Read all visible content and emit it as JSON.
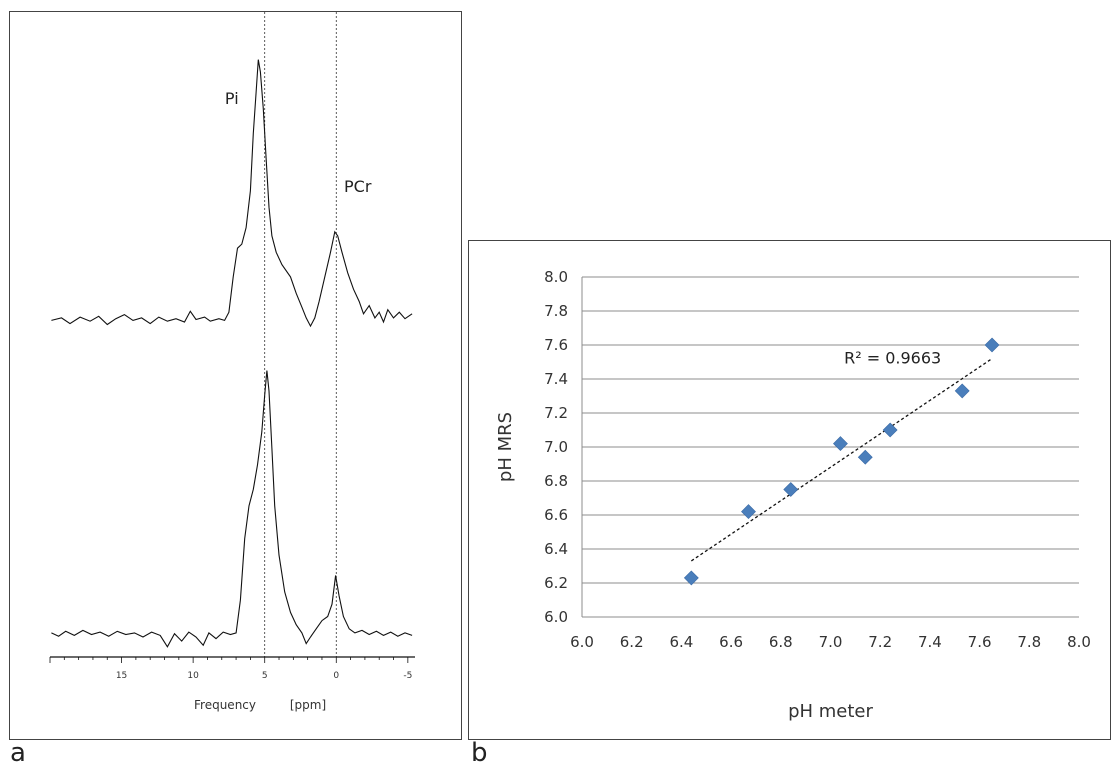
{
  "chart_data": [
    {
      "type": "line",
      "panel": "a",
      "xlabel": "Frequency",
      "xunit": "[ppm]",
      "xlim": [
        20,
        -5.5
      ],
      "x_reversed": true,
      "x_ticks": [
        "15",
        "10",
        "5",
        "0",
        "-5"
      ],
      "x_tick_values": [
        15,
        10,
        5,
        0,
        -5
      ],
      "reference_lines_ppm": [
        5,
        0
      ],
      "peak_labels": [
        {
          "text": "Pi",
          "ppm": 7.3
        },
        {
          "text": "PCr",
          "ppm": -1.5
        }
      ],
      "series": [
        {
          "points": [
            [
              19.9,
              0.02
            ],
            [
              19.2,
              0.05
            ],
            [
              18.6,
              -0.02
            ],
            [
              17.9,
              0.06
            ],
            [
              17.2,
              0.01
            ],
            [
              16.6,
              0.07
            ],
            [
              16.0,
              -0.03
            ],
            [
              15.4,
              0.04
            ],
            [
              14.8,
              0.09
            ],
            [
              14.2,
              0.02
            ],
            [
              13.6,
              0.05
            ],
            [
              13.0,
              -0.02
            ],
            [
              12.4,
              0.06
            ],
            [
              11.8,
              0.01
            ],
            [
              11.2,
              0.04
            ],
            [
              10.6,
              0.0
            ],
            [
              10.2,
              0.13
            ],
            [
              9.8,
              0.03
            ],
            [
              9.2,
              0.06
            ],
            [
              8.8,
              0.01
            ],
            [
              8.2,
              0.04
            ],
            [
              7.8,
              0.02
            ],
            [
              7.5,
              0.12
            ],
            [
              7.2,
              0.55
            ],
            [
              6.9,
              0.9
            ],
            [
              6.6,
              0.95
            ],
            [
              6.3,
              1.15
            ],
            [
              6.0,
              1.6
            ],
            [
              5.8,
              2.3
            ],
            [
              5.6,
              2.8
            ],
            [
              5.45,
              3.2
            ],
            [
              5.3,
              3.05
            ],
            [
              5.1,
              2.6
            ],
            [
              4.9,
              2.0
            ],
            [
              4.7,
              1.4
            ],
            [
              4.5,
              1.05
            ],
            [
              4.2,
              0.85
            ],
            [
              3.8,
              0.7
            ],
            [
              3.2,
              0.55
            ],
            [
              2.8,
              0.35
            ],
            [
              2.4,
              0.18
            ],
            [
              2.1,
              0.05
            ],
            [
              1.8,
              -0.05
            ],
            [
              1.5,
              0.05
            ],
            [
              1.2,
              0.25
            ],
            [
              0.8,
              0.55
            ],
            [
              0.4,
              0.85
            ],
            [
              0.1,
              1.1
            ],
            [
              -0.1,
              1.05
            ],
            [
              -0.4,
              0.85
            ],
            [
              -0.8,
              0.6
            ],
            [
              -1.2,
              0.4
            ],
            [
              -1.6,
              0.25
            ],
            [
              -1.9,
              0.1
            ],
            [
              -2.3,
              0.2
            ],
            [
              -2.7,
              0.05
            ],
            [
              -3.0,
              0.12
            ],
            [
              -3.3,
              0.0
            ],
            [
              -3.6,
              0.15
            ],
            [
              -4.0,
              0.05
            ],
            [
              -4.4,
              0.12
            ],
            [
              -4.8,
              0.04
            ],
            [
              -5.3,
              0.1
            ]
          ]
        },
        {
          "points": [
            [
              19.9,
              0.05
            ],
            [
              19.4,
              0.01
            ],
            [
              18.9,
              0.07
            ],
            [
              18.3,
              0.02
            ],
            [
              17.7,
              0.08
            ],
            [
              17.1,
              0.03
            ],
            [
              16.5,
              0.06
            ],
            [
              15.9,
              0.01
            ],
            [
              15.3,
              0.07
            ],
            [
              14.7,
              0.03
            ],
            [
              14.1,
              0.05
            ],
            [
              13.5,
              0.0
            ],
            [
              12.9,
              0.06
            ],
            [
              12.3,
              0.02
            ],
            [
              11.8,
              -0.12
            ],
            [
              11.3,
              0.04
            ],
            [
              10.8,
              -0.05
            ],
            [
              10.3,
              0.06
            ],
            [
              9.8,
              0.0
            ],
            [
              9.3,
              -0.1
            ],
            [
              8.9,
              0.05
            ],
            [
              8.4,
              -0.02
            ],
            [
              7.9,
              0.06
            ],
            [
              7.4,
              0.03
            ],
            [
              7.0,
              0.05
            ],
            [
              6.7,
              0.45
            ],
            [
              6.4,
              1.2
            ],
            [
              6.1,
              1.6
            ],
            [
              5.8,
              1.8
            ],
            [
              5.5,
              2.1
            ],
            [
              5.2,
              2.5
            ],
            [
              5.0,
              2.95
            ],
            [
              4.85,
              3.25
            ],
            [
              4.7,
              3.0
            ],
            [
              4.5,
              2.3
            ],
            [
              4.3,
              1.6
            ],
            [
              4.0,
              1.0
            ],
            [
              3.6,
              0.55
            ],
            [
              3.2,
              0.3
            ],
            [
              2.8,
              0.15
            ],
            [
              2.4,
              0.05
            ],
            [
              2.1,
              -0.08
            ],
            [
              1.8,
              0.0
            ],
            [
              1.4,
              0.1
            ],
            [
              1.0,
              0.2
            ],
            [
              0.6,
              0.25
            ],
            [
              0.3,
              0.4
            ],
            [
              0.05,
              0.75
            ],
            [
              -0.2,
              0.5
            ],
            [
              -0.5,
              0.25
            ],
            [
              -0.9,
              0.1
            ],
            [
              -1.3,
              0.05
            ],
            [
              -1.8,
              0.08
            ],
            [
              -2.3,
              0.03
            ],
            [
              -2.8,
              0.07
            ],
            [
              -3.3,
              0.02
            ],
            [
              -3.8,
              0.06
            ],
            [
              -4.3,
              0.01
            ],
            [
              -4.8,
              0.05
            ],
            [
              -5.3,
              0.02
            ]
          ]
        }
      ]
    },
    {
      "type": "scatter",
      "panel": "b",
      "xlabel": "pH meter",
      "ylabel": "pH MRS",
      "xlim": [
        6.0,
        8.0
      ],
      "ylim": [
        6.0,
        8.0
      ],
      "x_ticks": [
        "6.0",
        "6.2",
        "6.4",
        "6.6",
        "6.8",
        "7.0",
        "7.2",
        "7.4",
        "7.6",
        "7.8",
        "8.0"
      ],
      "y_ticks": [
        "8.0",
        "7.8",
        "7.6",
        "7.4",
        "7.2",
        "7.0",
        "6.8",
        "6.6",
        "6.4",
        "6.2",
        "6.0"
      ],
      "x_tick_values": [
        6.0,
        6.2,
        6.4,
        6.6,
        6.8,
        7.0,
        7.2,
        7.4,
        7.6,
        7.8,
        8.0
      ],
      "y_tick_values": [
        8.0,
        7.8,
        7.6,
        7.4,
        7.2,
        7.0,
        6.8,
        6.6,
        6.4,
        6.2,
        6.0
      ],
      "grid": "horizontal",
      "marker_color": "#4a7ebb",
      "points": [
        {
          "x": 6.44,
          "y": 6.23
        },
        {
          "x": 6.67,
          "y": 6.62
        },
        {
          "x": 6.84,
          "y": 6.75
        },
        {
          "x": 7.04,
          "y": 7.02
        },
        {
          "x": 7.14,
          "y": 6.94
        },
        {
          "x": 7.24,
          "y": 7.1
        },
        {
          "x": 7.53,
          "y": 7.33
        },
        {
          "x": 7.65,
          "y": 7.6
        }
      ],
      "trendline": {
        "x1": 6.44,
        "y1": 6.33,
        "x2": 7.65,
        "y2": 7.52
      },
      "annotation": "R² = 0.9663",
      "annotation_at": {
        "x": 7.25,
        "y": 7.49
      }
    }
  ],
  "panel_labels": [
    "a",
    "b"
  ]
}
